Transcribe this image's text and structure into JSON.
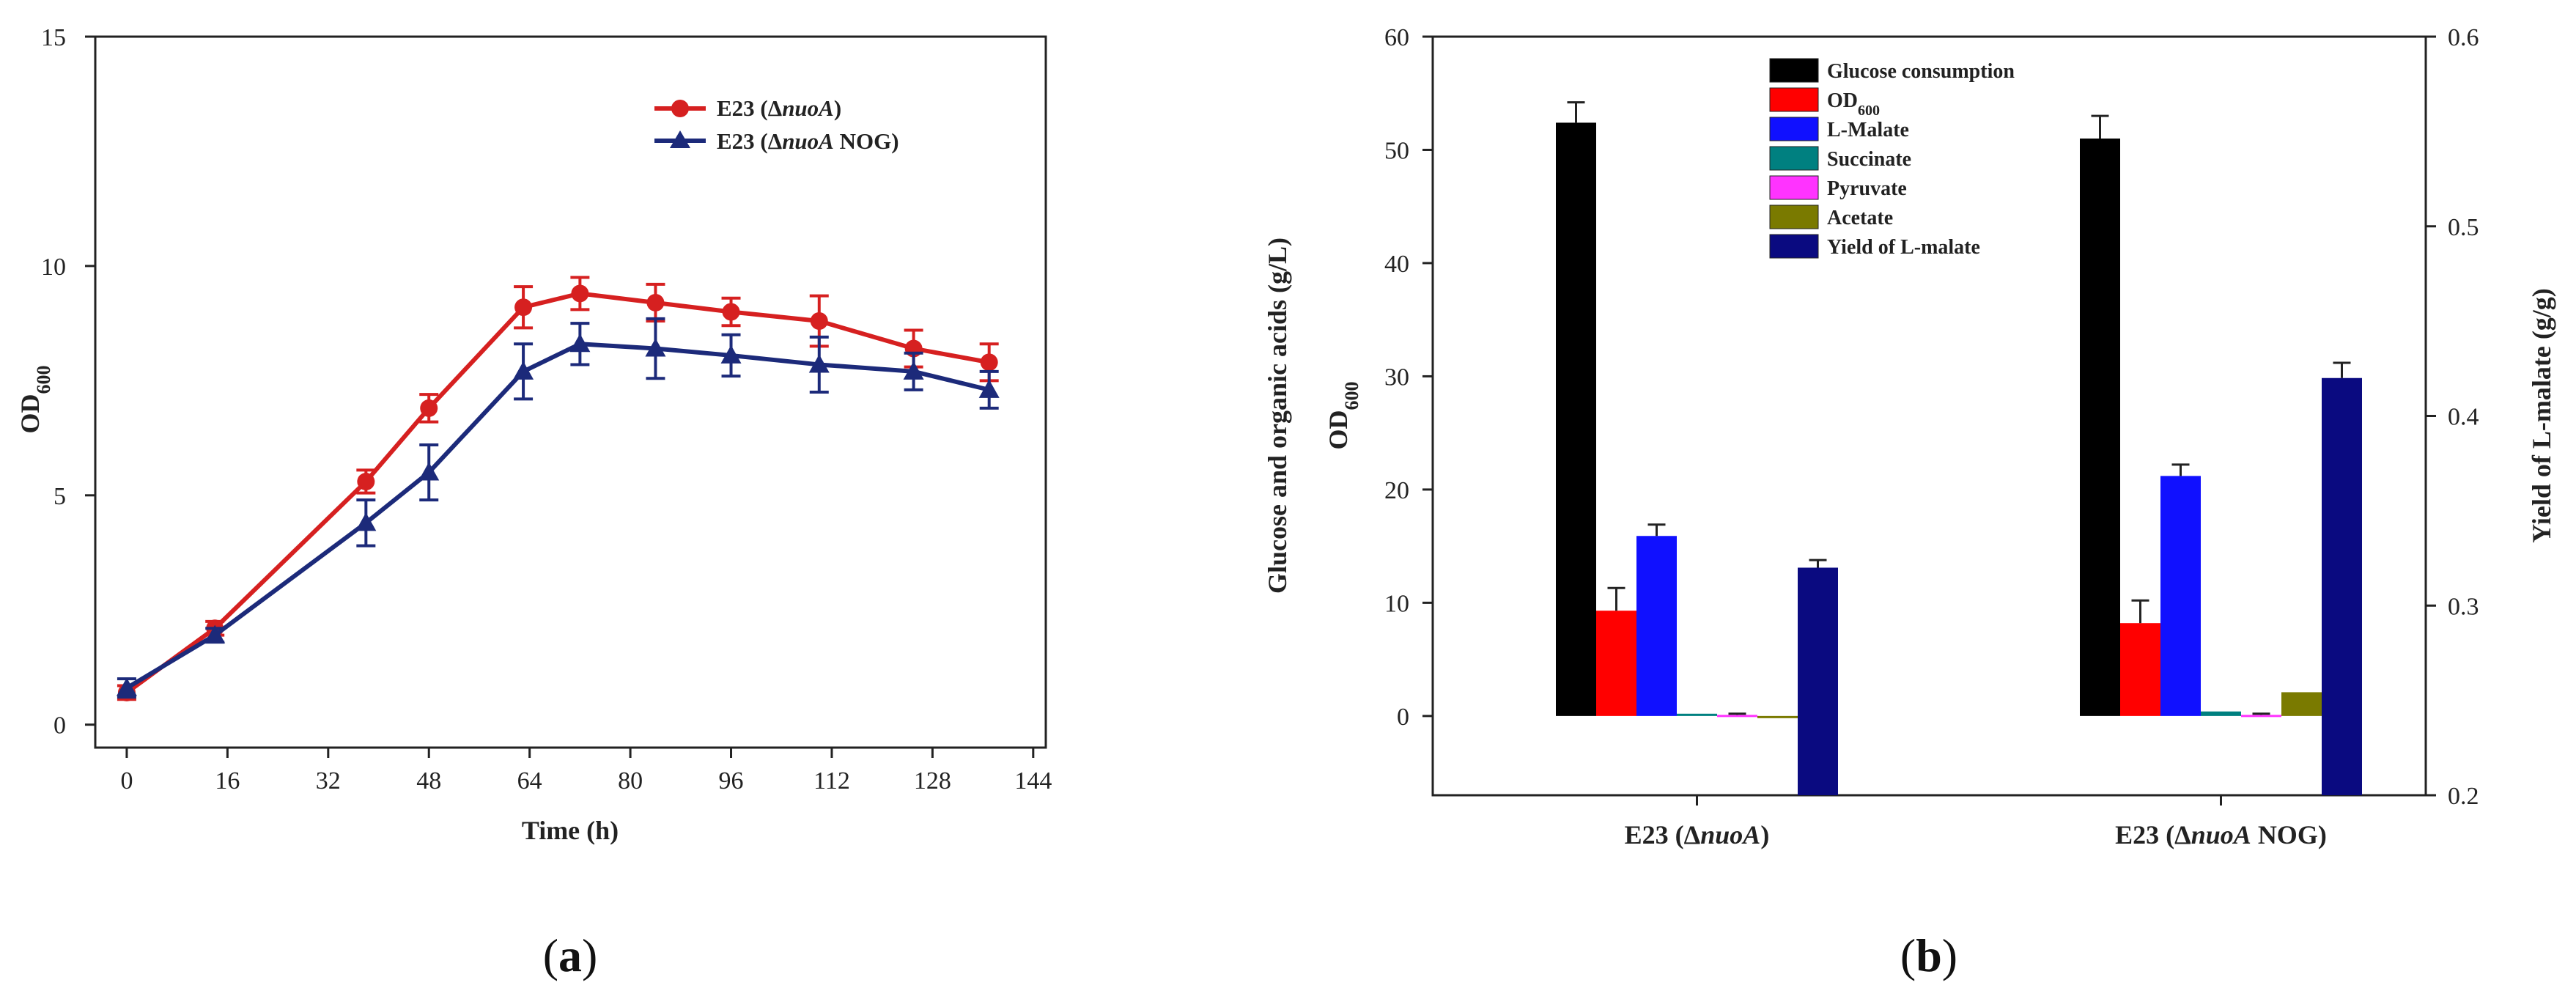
{
  "panels": {
    "a_label_open": "(",
    "a_label_letter": "a",
    "a_label_close": ")",
    "b_label_open": "(",
    "b_label_letter": "b",
    "b_label_close": ")"
  },
  "chart_data": [
    {
      "type": "line",
      "panel": "a",
      "xlabel": "Time (h)",
      "ylabel_main": "OD",
      "ylabel_sub": "600",
      "xlim": [
        -5,
        146
      ],
      "ylim": [
        -0.5,
        15
      ],
      "xticks": [
        0,
        16,
        32,
        48,
        64,
        80,
        96,
        112,
        128,
        144
      ],
      "yticks": [
        0,
        5,
        10,
        15
      ],
      "legend_position": "top-right",
      "series": [
        {
          "name_prefix": "E23 (Δ",
          "name_italic": "nuoA",
          "name_suffix": ")",
          "marker": "circle",
          "color": "#d62020",
          "x": [
            0,
            14,
            38,
            48,
            63,
            72,
            84,
            96,
            110,
            125,
            137
          ],
          "y": [
            0.7,
            2.1,
            5.3,
            6.9,
            9.1,
            9.4,
            9.2,
            9.0,
            8.8,
            8.2,
            7.9
          ],
          "err": [
            0.15,
            0.15,
            0.25,
            0.3,
            0.45,
            0.35,
            0.4,
            0.3,
            0.55,
            0.4,
            0.4
          ]
        },
        {
          "name_prefix": "E23 (Δ",
          "name_italic": "nuoA",
          "name_suffix": " NOG)",
          "marker": "triangle",
          "color": "#1c2a7a",
          "x": [
            0,
            14,
            38,
            48,
            63,
            72,
            84,
            96,
            110,
            125,
            137
          ],
          "y": [
            0.8,
            1.95,
            4.4,
            5.5,
            7.7,
            8.3,
            8.2,
            8.05,
            7.85,
            7.7,
            7.3
          ],
          "err": [
            0.2,
            0.15,
            0.5,
            0.6,
            0.6,
            0.45,
            0.65,
            0.45,
            0.6,
            0.4,
            0.4
          ]
        }
      ]
    },
    {
      "type": "bar",
      "panel": "b",
      "ylabel_left_line1": "Glucose and organic acids  (g/L)",
      "ylabel_left_line2_main": "OD",
      "ylabel_left_line2_sub": "600",
      "ylabel_right": "Yield of L-malate  (g/g)",
      "ylim_left": [
        -7,
        60
      ],
      "ylim_right": [
        0.2,
        0.6
      ],
      "yticks_left": [
        0,
        10,
        20,
        30,
        40,
        50,
        60
      ],
      "yticks_right": [
        0.2,
        0.3,
        0.4,
        0.5,
        0.6
      ],
      "legend_position": "top-left",
      "categories": [
        {
          "prefix": "E23 (Δ",
          "italic": "nuoA",
          "suffix": ")"
        },
        {
          "prefix": "E23 (Δ",
          "italic": "nuoA",
          "suffix": " NOG)"
        }
      ],
      "series": [
        {
          "name": "Glucose consumption",
          "color": "#000000",
          "axis": "left",
          "values": [
            52.4,
            51.0
          ],
          "err": [
            1.8,
            2.0
          ]
        },
        {
          "name_main": "OD",
          "name_sub": "600",
          "color": "#ff0000",
          "axis": "left",
          "values": [
            9.3,
            8.2
          ],
          "err": [
            2.0,
            2.0
          ]
        },
        {
          "name": "L-Malate",
          "color": "#1010ff",
          "axis": "left",
          "values": [
            15.9,
            21.2
          ],
          "err": [
            1.0,
            1.0
          ]
        },
        {
          "name": "Succinate",
          "color": "#008080",
          "axis": "left",
          "values": [
            0.2,
            0.4
          ],
          "err": [
            0,
            0
          ]
        },
        {
          "name": "Pyruvate",
          "color": "#ff33ff",
          "axis": "left",
          "values": [
            0.1,
            0.1
          ],
          "err": [
            0.1,
            0.1
          ]
        },
        {
          "name": "Acetate",
          "color": "#7a7a00",
          "axis": "left",
          "values": [
            -0.1,
            2.1
          ],
          "err": [
            0,
            0
          ]
        },
        {
          "name": "Yield of L-malate",
          "color": "#0a0a80",
          "axis": "right",
          "values": [
            0.32,
            0.42
          ],
          "err": [
            0.004,
            0.008
          ]
        }
      ]
    }
  ]
}
